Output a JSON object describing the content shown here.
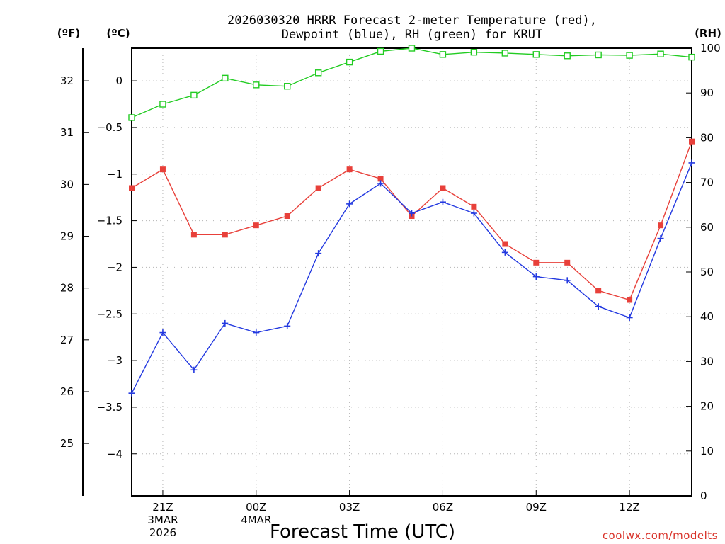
{
  "title": [
    "2026030320 HRRR Forecast 2-meter Temperature (red),",
    "Dewpoint (blue), RH (green) for KRUT"
  ],
  "units": {
    "fahrenheit": "(ºF)",
    "celsius": "(ºC)",
    "rh": "(RH)"
  },
  "credit": "coolwx.com/modelts",
  "colors": {
    "temperature": "#e8403a",
    "dewpoint": "#2339e0",
    "rh": "#22cc22"
  },
  "chart_data": {
    "type": "line",
    "title": "2026030320 HRRR Forecast 2-meter Temperature (red), Dewpoint (blue), RH (green) for KRUT",
    "xlabel": "Forecast Time (UTC)",
    "ylabel_left_f": "(ºF)",
    "ylabel_left_c": "(ºC)",
    "ylabel_right": "(RH)",
    "x_hours": [
      0,
      1,
      2,
      3,
      4,
      5,
      6,
      7,
      8,
      9,
      10,
      11,
      12,
      13,
      14,
      15,
      16,
      17,
      18
    ],
    "x_ticks": [
      {
        "hour": 1,
        "lines": [
          "21Z",
          "3MAR",
          "2026"
        ]
      },
      {
        "hour": 4,
        "lines": [
          "00Z",
          "4MAR"
        ]
      },
      {
        "hour": 7,
        "lines": [
          "03Z"
        ]
      },
      {
        "hour": 10,
        "lines": [
          "06Z"
        ]
      },
      {
        "hour": 13,
        "lines": [
          "09Z"
        ]
      },
      {
        "hour": 16,
        "lines": [
          "12Z"
        ]
      }
    ],
    "xlim": [
      0,
      18
    ],
    "ylim_c": [
      -4.45,
      0.35
    ],
    "ylim_rh": [
      0,
      100
    ],
    "c_ticks": [
      0,
      -0.5,
      -1,
      -1.5,
      -2,
      -2.5,
      -3,
      -3.5,
      -4
    ],
    "c_tick_labels": [
      "0",
      "−0.5",
      "−1",
      "−1.5",
      "−2",
      "−2.5",
      "−3",
      "−3.5",
      "−4"
    ],
    "f_ticks": [
      32,
      31,
      30,
      29,
      28,
      27,
      26,
      25
    ],
    "rh_ticks": [
      0,
      10,
      20,
      30,
      40,
      50,
      60,
      70,
      80,
      90,
      100
    ],
    "series": [
      {
        "name": "Temperature (°C)",
        "color": "#e8403a",
        "marker": "filled-square",
        "values": [
          -1.15,
          -0.95,
          -1.65,
          -1.65,
          -1.55,
          -1.45,
          -1.15,
          -0.95,
          -1.05,
          -1.45,
          -1.15,
          -1.35,
          -1.75,
          -1.95,
          -1.95,
          -2.25,
          -2.35,
          -1.55,
          -0.65
        ]
      },
      {
        "name": "Dewpoint (°C)",
        "color": "#2339e0",
        "marker": "plus",
        "values": [
          -3.35,
          -2.7,
          -3.1,
          -2.6,
          -2.7,
          -2.63,
          -1.85,
          -1.32,
          -1.1,
          -1.42,
          -1.3,
          -1.42,
          -1.84,
          -2.1,
          -2.14,
          -2.42,
          -2.54,
          -1.69,
          -0.88
        ]
      },
      {
        "name": "Relative Humidity (%)",
        "color": "#22cc22",
        "marker": "open-square",
        "values": [
          84.5,
          87.5,
          89.5,
          93.3,
          91.8,
          91.5,
          94.5,
          96.9,
          99.3,
          100,
          98.6,
          99.1,
          98.9,
          98.6,
          98.3,
          98.5,
          98.4,
          98.7,
          98.0
        ]
      }
    ]
  }
}
